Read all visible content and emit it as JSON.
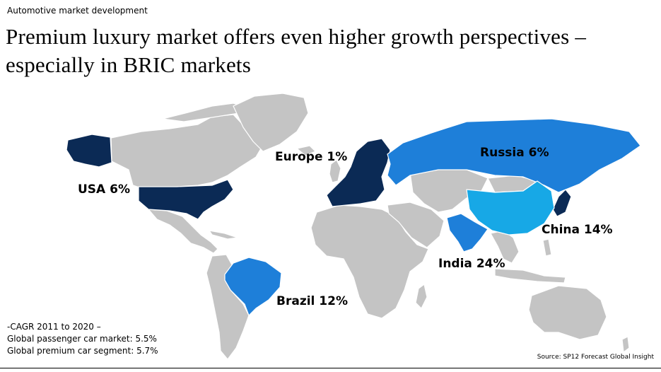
{
  "header": {
    "kicker": "Automotive market development",
    "title_line1": "Premium luxury market offers even higher growth perspectives –",
    "title_line2": "especially in BRIC markets"
  },
  "colors": {
    "land": "#c4c4c4",
    "border": "#ffffff",
    "dark_navy": "#0b2a55",
    "bright_blue": "#1e7fd9",
    "light_blue": "#17a8e6"
  },
  "regions": {
    "usa": "USA 6%",
    "europe": "Europe 1%",
    "russia": "Russia 6%",
    "china": "China 14%",
    "india": "India 24%",
    "brazil": "Brazil 12%"
  },
  "footnote": {
    "line1": "-CAGR 2011 to 2020 –",
    "line2": "Global passenger car market: 5.5%",
    "line3": "Global premium car segment: 5.7%"
  },
  "source": "Source: SP12 Forecast Global Insight"
}
